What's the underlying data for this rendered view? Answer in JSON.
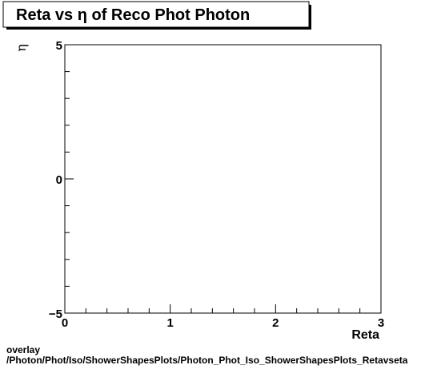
{
  "chart_data": {
    "type": "scatter",
    "title": "Reta vs  η of Reco Phot Photon",
    "xlabel": "Reta",
    "ylabel": "η",
    "xlim": [
      0,
      3
    ],
    "ylim": [
      -5,
      5
    ],
    "xticks": [
      "0",
      "1",
      "2",
      "3"
    ],
    "xtick_values": [
      0,
      1,
      2,
      3
    ],
    "yticks": [
      "5",
      "0",
      "−5"
    ],
    "ytick_values": [
      5,
      0,
      -5
    ],
    "grid": false,
    "series": []
  },
  "footer": {
    "line1": "overlay",
    "line2": "/Photon/Phot/Iso/ShowerShapesPlots/Photon_Phot_Iso_ShowerShapesPlots_Retavseta"
  }
}
